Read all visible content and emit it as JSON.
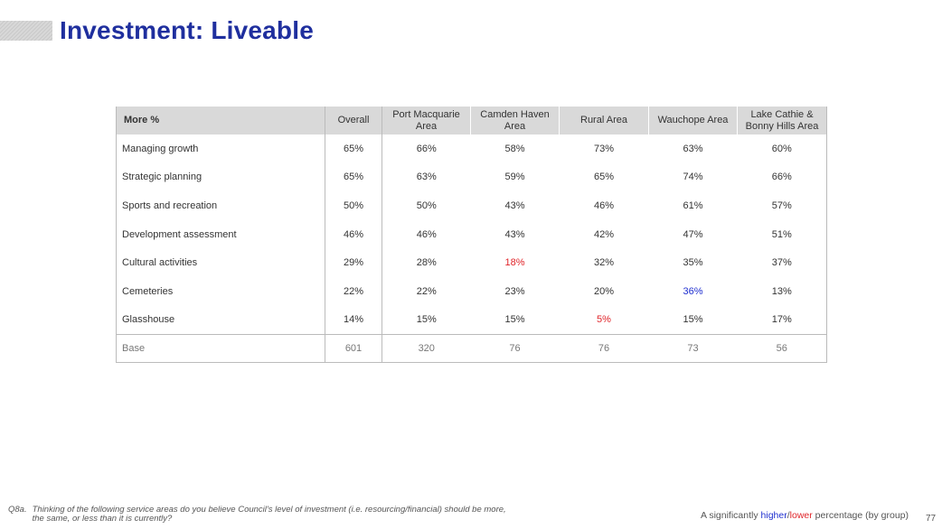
{
  "page": {
    "title": "Investment: Liveable",
    "page_number": "77"
  },
  "table": {
    "header": {
      "row_label": "More %",
      "columns": [
        "Overall",
        "Port Macquarie Area",
        "Camden Haven Area",
        "Rural Area",
        "Wauchope Area",
        "Lake Cathie & Bonny Hills Area"
      ]
    },
    "rows": [
      {
        "label": "Managing growth",
        "values": [
          "65%",
          "66%",
          "58%",
          "73%",
          "63%",
          "60%"
        ],
        "flags": [
          "",
          "",
          "",
          "",
          "",
          ""
        ]
      },
      {
        "label": "Strategic planning",
        "values": [
          "65%",
          "63%",
          "59%",
          "65%",
          "74%",
          "66%"
        ],
        "flags": [
          "",
          "",
          "",
          "",
          "",
          ""
        ]
      },
      {
        "label": "Sports and recreation",
        "values": [
          "50%",
          "50%",
          "43%",
          "46%",
          "61%",
          "57%"
        ],
        "flags": [
          "",
          "",
          "",
          "",
          "",
          ""
        ]
      },
      {
        "label": "Development assessment",
        "values": [
          "46%",
          "46%",
          "43%",
          "42%",
          "47%",
          "51%"
        ],
        "flags": [
          "",
          "",
          "",
          "",
          "",
          ""
        ]
      },
      {
        "label": "Cultural activities",
        "values": [
          "29%",
          "28%",
          "18%",
          "32%",
          "35%",
          "37%"
        ],
        "flags": [
          "",
          "",
          "lower",
          "",
          "",
          ""
        ]
      },
      {
        "label": "Cemeteries",
        "values": [
          "22%",
          "22%",
          "23%",
          "20%",
          "36%",
          "13%"
        ],
        "flags": [
          "",
          "",
          "",
          "",
          "higher",
          ""
        ]
      },
      {
        "label": "Glasshouse",
        "values": [
          "14%",
          "15%",
          "15%",
          "5%",
          "15%",
          "17%"
        ],
        "flags": [
          "",
          "",
          "",
          "lower",
          "",
          ""
        ]
      }
    ],
    "base": {
      "label": "Base",
      "values": [
        "601",
        "320",
        "76",
        "76",
        "73",
        "56"
      ]
    }
  },
  "footnote": {
    "question_id": "Q8a.",
    "line1": "Thinking of the following service areas do you believe Council's level of investment (i.e. resourcing/financial) should be more,",
    "line2": "the same, or less than it is currently?"
  },
  "legend": {
    "prefix": "A significantly ",
    "higher": "higher",
    "separator": "/",
    "lower": "lower",
    "suffix": " percentage (by group)"
  },
  "colors": {
    "title": "#1f2f9e",
    "higher": "#1f2fcf",
    "lower": "#e0252a",
    "header_bg": "#d9d9d9"
  }
}
